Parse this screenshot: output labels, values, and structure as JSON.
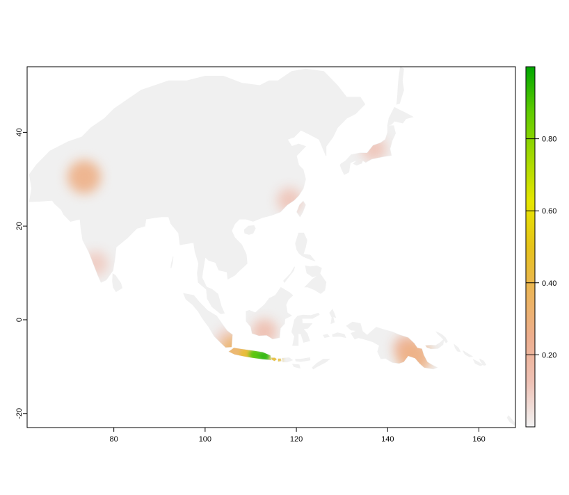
{
  "colors": {
    "background": "#ffffff",
    "land": "#f0f0f0",
    "frame": "#000000",
    "ramp": [
      "#f2f2f2",
      "#eec1b5",
      "#edae8e",
      "#ebb45a",
      "#e6c31a",
      "#e6e600",
      "#a3d900",
      "#5fcb00",
      "#00a600"
    ]
  },
  "chart_data": {
    "type": "heatmap",
    "title": "",
    "xlabel": "",
    "ylabel": "",
    "xlim": [
      61,
      168
    ],
    "ylim": [
      -23,
      54
    ],
    "xticks": [
      80,
      100,
      120,
      140,
      160
    ],
    "yticks": [
      -20,
      0,
      20,
      40
    ],
    "legend": {
      "position": "right",
      "range": [
        0,
        1
      ],
      "ticks": [
        0.2,
        0.4,
        0.6,
        0.8
      ],
      "tick_labels": [
        "0.20",
        "0.40",
        "0.60",
        "0.80"
      ]
    },
    "hotspots": [
      {
        "lon": 73.5,
        "lat": 30.5,
        "value": 0.27
      },
      {
        "lon": 76,
        "lat": 12,
        "value": 0.1
      },
      {
        "lon": 118.5,
        "lat": 25.5,
        "value": 0.12
      },
      {
        "lon": 137,
        "lat": 36.5,
        "value": 0.12
      },
      {
        "lon": 113,
        "lat": -2.5,
        "value": 0.15
      },
      {
        "lon": 105,
        "lat": -4.5,
        "value": 0.1
      },
      {
        "lon": 144,
        "lat": -6,
        "value": 0.2
      },
      {
        "lon": 146,
        "lat": -8,
        "value": 0.28
      },
      {
        "lon": 107,
        "lat": -7,
        "value": 0.35
      },
      {
        "lon": 109,
        "lat": -7.3,
        "value": 0.45
      },
      {
        "lon": 111,
        "lat": -7.5,
        "value": 0.9
      },
      {
        "lon": 113,
        "lat": -7.8,
        "value": 0.95
      },
      {
        "lon": 115.5,
        "lat": -8.4,
        "value": 0.45
      }
    ]
  }
}
